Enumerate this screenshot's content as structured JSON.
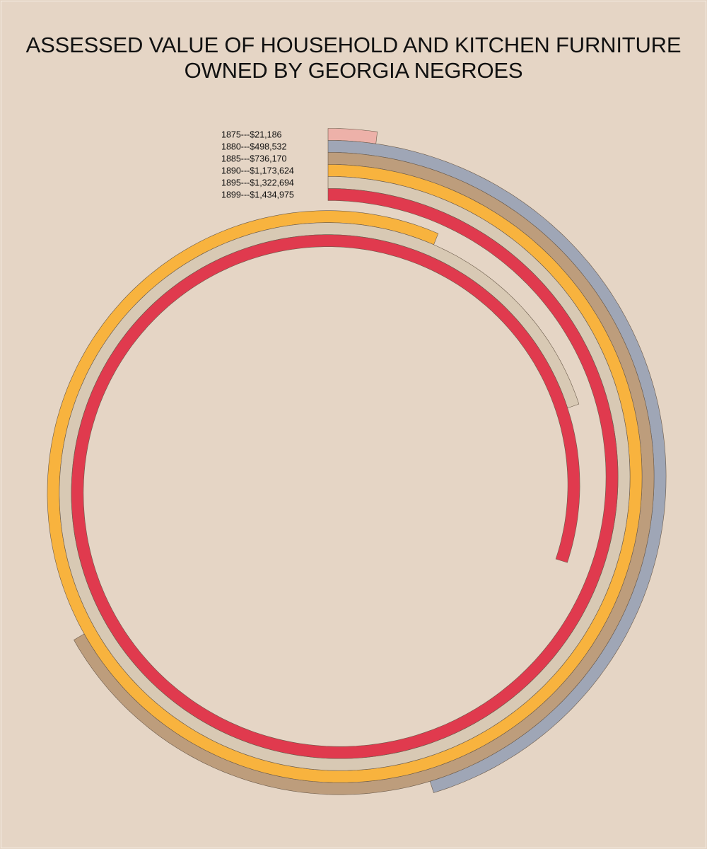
{
  "chart_data": {
    "type": "spiral",
    "title_lines": [
      "ASSESSED VALUE OF HOUSEHOLD AND KITCHEN FURNITURE",
      "OWNED BY GEORGIA NEGROES"
    ],
    "series": [
      {
        "year": "1875",
        "label": "1875---$21,186",
        "value": 21186,
        "color": "#edb1a9"
      },
      {
        "year": "1880",
        "label": "1880---$498,532",
        "value": 498532,
        "color": "#9fa6b6"
      },
      {
        "year": "1885",
        "label": "1885---$736,170",
        "value": 736170,
        "color": "#bd9d7c"
      },
      {
        "year": "1890",
        "label": "1890---$1,173,624",
        "value": 1173624,
        "color": "#f8b33e"
      },
      {
        "year": "1895",
        "label": "1895---$1,322,694",
        "value": 1322694,
        "color": "#d8c9b4"
      },
      {
        "year": "1899",
        "label": "1899---$1,434,975",
        "value": 1434975,
        "color": "#e03a4e"
      }
    ],
    "legend_position": "top-left-of-center",
    "background_color": "#e5d5c5"
  }
}
